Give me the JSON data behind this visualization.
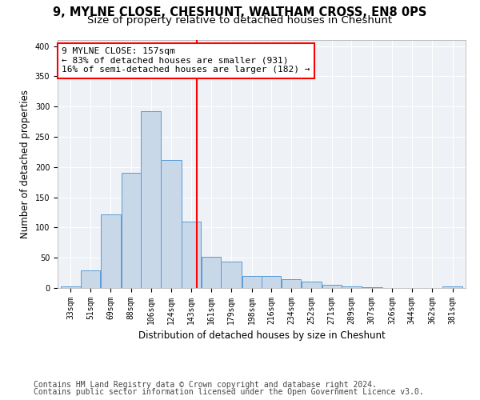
{
  "title1": "9, MYLNE CLOSE, CHESHUNT, WALTHAM CROSS, EN8 0PS",
  "title2": "Size of property relative to detached houses in Cheshunt",
  "xlabel": "Distribution of detached houses by size in Cheshunt",
  "ylabel": "Number of detached properties",
  "bar_color": "#c8d8e8",
  "bar_edge_color": "#5b9bd5",
  "vline_x": 157,
  "vline_color": "red",
  "annotation_line1": "9 MYLNE CLOSE: 157sqm",
  "annotation_line2": "← 83% of detached houses are smaller (931)",
  "annotation_line3": "16% of semi-detached houses are larger (182) →",
  "bins": [
    33,
    51,
    69,
    88,
    106,
    124,
    143,
    161,
    179,
    198,
    216,
    234,
    252,
    271,
    289,
    307,
    326,
    344,
    362,
    381,
    399
  ],
  "bar_heights": [
    3,
    29,
    122,
    190,
    292,
    211,
    110,
    51,
    44,
    20,
    20,
    14,
    10,
    5,
    3,
    1,
    0,
    0,
    0,
    3
  ],
  "ylim": [
    0,
    410
  ],
  "yticks": [
    0,
    50,
    100,
    150,
    200,
    250,
    300,
    350,
    400
  ],
  "footer1": "Contains HM Land Registry data © Crown copyright and database right 2024.",
  "footer2": "Contains public sector information licensed under the Open Government Licence v3.0.",
  "bg_color": "#eef2f7",
  "title1_fontsize": 10.5,
  "title2_fontsize": 9.5,
  "tick_label_fontsize": 7,
  "axis_label_fontsize": 8.5,
  "footer_fontsize": 7,
  "annotation_fontsize": 8
}
